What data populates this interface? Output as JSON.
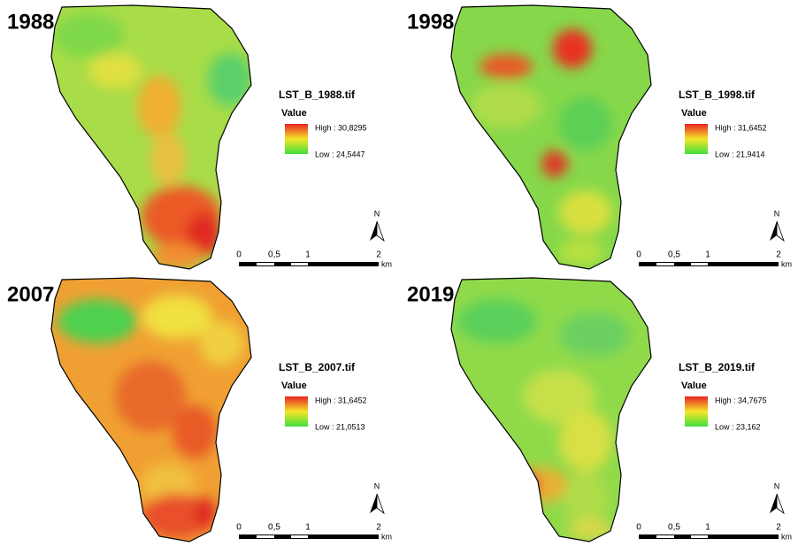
{
  "panels": [
    {
      "year": "1988",
      "legend": {
        "title": "LST_B_1988.tif",
        "field": "Value",
        "high": "High : 30,8295",
        "low": "Low : 24,5447"
      },
      "north": "N",
      "scale": {
        "labels": [
          "0",
          "0,5",
          "1",
          "2"
        ],
        "unit": "km"
      }
    },
    {
      "year": "1998",
      "legend": {
        "title": "LST_B_1998.tif",
        "field": "Value",
        "high": "High : 31,6452",
        "low": "Low : 21,9414"
      },
      "north": "N",
      "scale": {
        "labels": [
          "0",
          "0,5",
          "1",
          "2"
        ],
        "unit": "km"
      }
    },
    {
      "year": "2007",
      "legend": {
        "title": "LST_B_2007.tif",
        "field": "Value",
        "high": "High : 31,6452",
        "low": "Low : 21,0513"
      },
      "north": "N",
      "scale": {
        "labels": [
          "0",
          "0,5",
          "1",
          "2"
        ],
        "unit": "km"
      }
    },
    {
      "year": "2019",
      "legend": {
        "title": "LST_B_2019.tif",
        "field": "Value",
        "high": "High : 34,7675",
        "low": "Low : 23,162"
      },
      "north": "N",
      "scale": {
        "labels": [
          "0",
          "0,5",
          "1",
          "2"
        ],
        "unit": "km"
      }
    }
  ]
}
